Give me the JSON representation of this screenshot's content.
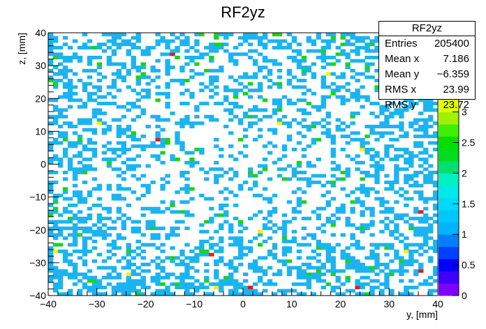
{
  "chart_data": {
    "type": "heatmap",
    "title": "RF2yz",
    "xlabel": "y, [mm]",
    "ylabel": "z, [mm]",
    "xlim": [
      -40,
      40
    ],
    "ylim": [
      -40,
      40
    ],
    "x_ticks": [
      -40,
      -30,
      -20,
      -10,
      0,
      10,
      20,
      30,
      40
    ],
    "y_ticks": [
      -40,
      -30,
      -20,
      -10,
      0,
      10,
      20,
      30,
      40
    ],
    "z_ticks": [
      0,
      0.5,
      1,
      1.5,
      2,
      2.5,
      3
    ],
    "zlim": [
      0,
      3.2
    ],
    "bin_width_mm": 1,
    "palette": [
      "#8000ff",
      "#4000ff",
      "#0000ff",
      "#0040ff",
      "#0080ff",
      "#00b4ff",
      "#00c8ff",
      "#00d8ff",
      "#00e8e8",
      "#00f0c0",
      "#00e070",
      "#00dc20",
      "#00e000",
      "#40f000",
      "#a0f000",
      "#e0ff00"
    ],
    "cell_colors": {
      "one": "#1cb4f0",
      "two": "#19d419",
      "three": "#ffee00",
      "high": "#e6191a"
    },
    "hot_cells": [
      {
        "y": -15,
        "z": 33,
        "level": "high"
      },
      {
        "y": -18,
        "z": 7,
        "level": "high"
      },
      {
        "y": -7,
        "z": -28,
        "level": "high"
      },
      {
        "y": 1,
        "z": -38,
        "level": "high"
      },
      {
        "y": 23,
        "z": -38,
        "level": "high"
      },
      {
        "y": 36,
        "z": -33,
        "level": "high"
      },
      {
        "y": 36,
        "z": -15,
        "level": "high"
      },
      {
        "y": 17,
        "z": 27,
        "level": "three"
      },
      {
        "y": -30,
        "z": 12,
        "level": "three"
      },
      {
        "y": 7,
        "z": 12,
        "level": "three"
      },
      {
        "y": 24,
        "z": 4,
        "level": "three"
      },
      {
        "y": 3,
        "z": -21,
        "level": "three"
      },
      {
        "y": -24,
        "z": -34,
        "level": "three"
      },
      {
        "y": -6,
        "z": -38,
        "level": "three"
      },
      {
        "y": 33,
        "z": -27,
        "level": "three"
      },
      {
        "y": -39,
        "z": -27,
        "level": "three"
      },
      {
        "y": 25,
        "z": 29,
        "level": "two"
      },
      {
        "y": -18,
        "z": 19,
        "level": "two"
      },
      {
        "y": -33,
        "z": -3,
        "level": "two"
      },
      {
        "y": 12,
        "z": -12,
        "level": "two"
      }
    ],
    "stats": {
      "title": "RF2yz",
      "rows": [
        {
          "label": "Entries",
          "value": "205400"
        },
        {
          "label": "Mean x",
          "value": "7.186"
        },
        {
          "label": "Mean y",
          "value": "−6.359"
        },
        {
          "label": "RMS x",
          "value": "23.99"
        },
        {
          "label": "RMS y",
          "value": "23.72"
        }
      ]
    }
  }
}
